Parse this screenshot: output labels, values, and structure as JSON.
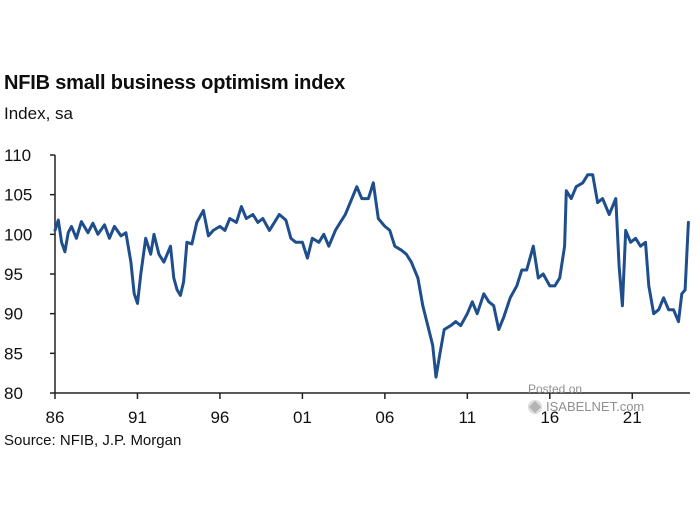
{
  "watermark": {
    "line1": "Posted on",
    "line2": "ISABELNET.com"
  },
  "chart_data": {
    "type": "line",
    "title": "NFIB small business optimism index",
    "subtitle": "Index, sa",
    "source": "Source: NFIB, J.P. Morgan",
    "xlabel": "",
    "ylabel": "",
    "ylim": [
      80,
      110
    ],
    "xlim": [
      1986,
      2024.5
    ],
    "yticks": [
      80,
      85,
      90,
      95,
      100,
      105,
      110
    ],
    "xticks": [
      {
        "value": 1986,
        "label": "86"
      },
      {
        "value": 1991,
        "label": "91"
      },
      {
        "value": 1996,
        "label": "96"
      },
      {
        "value": 2001,
        "label": "01"
      },
      {
        "value": 2006,
        "label": "06"
      },
      {
        "value": 2011,
        "label": "11"
      },
      {
        "value": 2016,
        "label": "16"
      },
      {
        "value": 2021,
        "label": "21"
      }
    ],
    "grid": false,
    "colors": {
      "line": "#1f4e8c",
      "axis": "#222222"
    },
    "series": [
      {
        "name": "",
        "x": [
          1986.0,
          1986.2,
          1986.4,
          1986.6,
          1986.8,
          1987.0,
          1987.3,
          1987.6,
          1988.0,
          1988.3,
          1988.6,
          1989.0,
          1989.3,
          1989.6,
          1990.0,
          1990.3,
          1990.6,
          1990.8,
          1991.0,
          1991.2,
          1991.5,
          1991.8,
          1992.0,
          1992.3,
          1992.6,
          1993.0,
          1993.2,
          1993.4,
          1993.6,
          1993.8,
          1994.0,
          1994.3,
          1994.6,
          1995.0,
          1995.3,
          1995.6,
          1996.0,
          1996.3,
          1996.6,
          1997.0,
          1997.3,
          1997.6,
          1998.0,
          1998.3,
          1998.6,
          1999.0,
          1999.3,
          1999.6,
          2000.0,
          2000.3,
          2000.6,
          2001.0,
          2001.3,
          2001.6,
          2002.0,
          2002.3,
          2002.6,
          2003.0,
          2003.3,
          2003.6,
          2004.0,
          2004.3,
          2004.6,
          2005.0,
          2005.3,
          2005.6,
          2006.0,
          2006.3,
          2006.6,
          2007.0,
          2007.3,
          2007.6,
          2008.0,
          2008.3,
          2008.6,
          2008.9,
          2009.1,
          2009.3,
          2009.6,
          2010.0,
          2010.3,
          2010.6,
          2011.0,
          2011.3,
          2011.6,
          2012.0,
          2012.3,
          2012.6,
          2012.9,
          2013.2,
          2013.6,
          2014.0,
          2014.3,
          2014.6,
          2015.0,
          2015.3,
          2015.6,
          2016.0,
          2016.3,
          2016.6,
          2016.9,
          2017.0,
          2017.3,
          2017.6,
          2018.0,
          2018.3,
          2018.6,
          2018.9,
          2019.2,
          2019.6,
          2020.0,
          2020.2,
          2020.4,
          2020.6,
          2020.9,
          2021.2,
          2021.5,
          2021.8,
          2022.0,
          2022.3,
          2022.6,
          2022.9,
          2023.2,
          2023.5,
          2023.8,
          2024.0,
          2024.2,
          2024.4
        ],
        "values": [
          100.5,
          101.8,
          99.0,
          97.8,
          100.2,
          101.0,
          99.5,
          101.6,
          100.2,
          101.4,
          100.0,
          101.2,
          99.5,
          101.0,
          99.8,
          100.2,
          96.5,
          92.5,
          91.3,
          95.0,
          99.5,
          97.5,
          100.0,
          97.5,
          96.5,
          98.5,
          94.5,
          93.0,
          92.3,
          94.0,
          99.0,
          98.8,
          101.5,
          103.0,
          99.8,
          100.5,
          101.0,
          100.5,
          102.0,
          101.5,
          103.5,
          102.0,
          102.5,
          101.5,
          102.0,
          100.5,
          101.5,
          102.5,
          101.8,
          99.5,
          99.0,
          99.0,
          97.0,
          99.5,
          99.0,
          100.0,
          98.5,
          100.5,
          101.5,
          102.5,
          104.5,
          106.0,
          104.5,
          104.5,
          106.5,
          102.0,
          101.0,
          100.5,
          98.5,
          98.0,
          97.5,
          96.5,
          94.5,
          91.0,
          88.5,
          86.0,
          82.0,
          84.5,
          88.0,
          88.5,
          89.0,
          88.5,
          90.0,
          91.5,
          90.0,
          92.5,
          91.5,
          91.0,
          88.0,
          89.5,
          92.0,
          93.5,
          95.5,
          95.5,
          98.5,
          94.5,
          95.0,
          93.5,
          93.5,
          94.5,
          98.5,
          105.5,
          104.5,
          106.0,
          106.5,
          107.5,
          107.5,
          104.0,
          104.5,
          102.5,
          104.5,
          96.0,
          91.0,
          100.5,
          99.0,
          99.5,
          98.5,
          99.0,
          93.5,
          90.0,
          90.5,
          92.0,
          90.5,
          90.5,
          89.0,
          92.5,
          93.0,
          101.5
        ]
      }
    ]
  }
}
